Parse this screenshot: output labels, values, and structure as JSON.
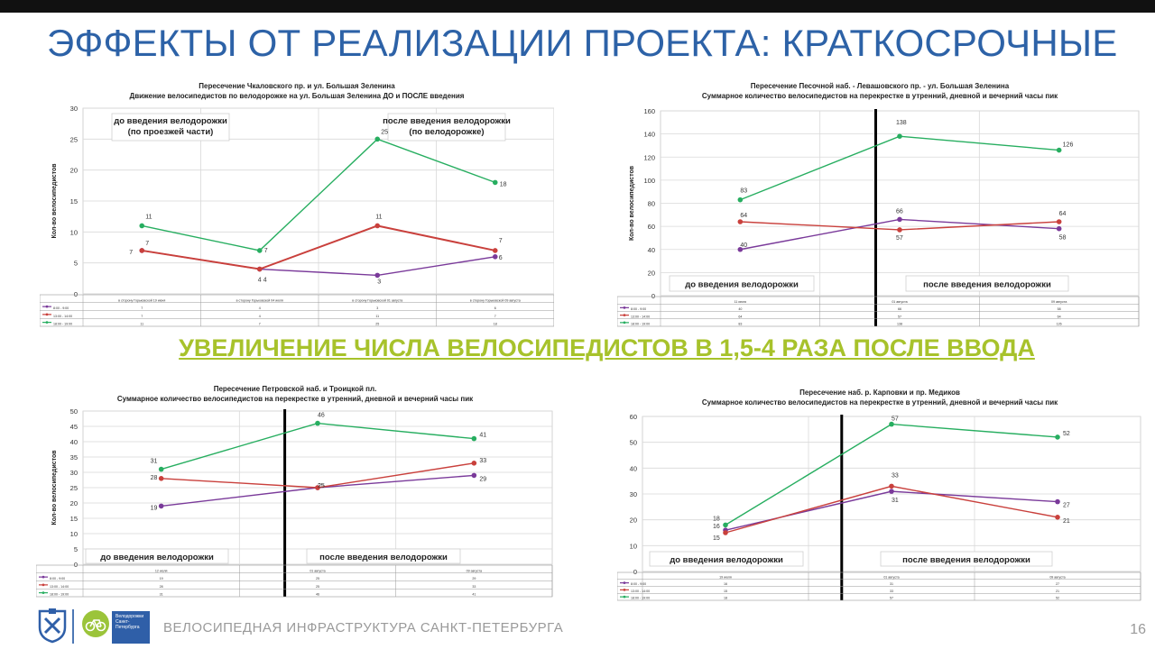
{
  "slide": {
    "title": "ЭФФЕКТЫ ОТ РЕАЛИЗАЦИИ ПРОЕКТА: КРАТКОСРОЧНЫЕ",
    "subtitle": "УВЕЛИЧЕНИЕ ЧИСЛА ВЕЛОСИПЕДИСТОВ В 1,5-4 РАЗА ПОСЛЕ ВВОДА",
    "footer": "ВЕЛОСИПЕДНАЯ ИНФРАСТРУКТУРА САНКТ-ПЕТЕРБУРГА",
    "page_number": "16",
    "logo_text": [
      "Велодорожки",
      "Санкт-",
      "Петербурга"
    ]
  },
  "colors": {
    "title": "#2d62a7",
    "subtitle": "#a7c22b",
    "series_morning": "#7a3a9a",
    "series_midday": "#c9403c",
    "series_evening": "#27ae60"
  },
  "chart_data": [
    {
      "type": "line",
      "title": "Пересечение Чкаловского пр. и ул. Большая Зеленина",
      "subtitle": "Движение велосипедистов по велодорожке на ул. Большая Зеленина ДО и ПОСЛЕ введения",
      "ylabel": "Кол-во велосипедистов",
      "ylim": [
        0,
        30
      ],
      "yticks": [
        0,
        5,
        10,
        15,
        20,
        25,
        30
      ],
      "categories": [
        "в сторону Горьковской 19 июня",
        "в сторону Горьковской 04 июля",
        "в сторону Горьковской 01 августа",
        "в сторону Горьковской 09 августа"
      ],
      "series": [
        {
          "name": "8:00 - 9:00",
          "values": [
            7,
            4,
            3,
            6
          ]
        },
        {
          "name": "13:00 - 14:00",
          "values": [
            7,
            4,
            11,
            7
          ]
        },
        {
          "name": "18:00 - 19:00",
          "values": [
            11,
            7,
            25,
            18
          ]
        }
      ],
      "annotations": [
        "до введения велодорожки\n(по проезжей части)",
        "после введения велодорожки\n(по велодорожке)"
      ]
    },
    {
      "type": "line",
      "title": "Пересечение Песочной наб. - Левашовского пр. - ул. Большая Зеленина",
      "subtitle": "Суммарное количество велосипедистов на перекрестке в утренний, дневной и вечерний часы пик",
      "ylabel": "Кол-во велосипедистов",
      "ylim": [
        0,
        160
      ],
      "yticks": [
        0,
        20,
        40,
        60,
        80,
        100,
        120,
        140,
        160
      ],
      "categories": [
        "11 июля",
        "01 августа",
        "09 августа"
      ],
      "series": [
        {
          "name": "8:00 - 9:00",
          "values": [
            40,
            66,
            58
          ]
        },
        {
          "name": "13:00 - 14:00",
          "values": [
            64,
            57,
            64
          ]
        },
        {
          "name": "18:00 - 19:00",
          "values": [
            83,
            138,
            126
          ]
        }
      ],
      "annotations": [
        "до введения велодорожки",
        "после введения велодорожки"
      ]
    },
    {
      "type": "line",
      "title": "Пересечение Петровской наб. и Троицкой пл.",
      "subtitle": "Суммарное количество велосипедистов на перекрестке в утренний, дневной и вечерний часы пик",
      "ylabel": "Кол-во велосипедистов",
      "ylim": [
        0,
        50
      ],
      "yticks": [
        0,
        5,
        10,
        15,
        20,
        25,
        30,
        35,
        40,
        45,
        50
      ],
      "categories": [
        "12 июля",
        "01 августа",
        "09 августа"
      ],
      "series": [
        {
          "name": "8:00 - 9:00",
          "values": [
            19,
            25,
            29
          ]
        },
        {
          "name": "13:00 - 14:00",
          "values": [
            28,
            25,
            33
          ]
        },
        {
          "name": "18:00 - 19:00",
          "values": [
            31,
            46,
            41
          ]
        }
      ],
      "annotations": [
        "до введения велодорожки",
        "после введения велодорожки"
      ]
    },
    {
      "type": "line",
      "title": "Пересечение наб. р. Карповки и пр. Медиков",
      "subtitle": "Суммарное количество велосипедистов на перекрестке в утренний, дневной и вечерний часы пик",
      "ylabel": "Кол-во велосипедистов",
      "ylim": [
        0,
        60
      ],
      "yticks": [
        0,
        10,
        20,
        30,
        40,
        50,
        60
      ],
      "categories": [
        "19 июля",
        "01 августа",
        "09 августа"
      ],
      "series": [
        {
          "name": "8:00 - 9:00",
          "values": [
            16,
            31,
            27
          ]
        },
        {
          "name": "13:00 - 14:00",
          "values": [
            15,
            33,
            21
          ]
        },
        {
          "name": "18:00 - 19:00",
          "values": [
            18,
            57,
            52
          ]
        }
      ],
      "annotations": [
        "до введения велодорожки",
        "после введения велодорожки"
      ]
    }
  ]
}
